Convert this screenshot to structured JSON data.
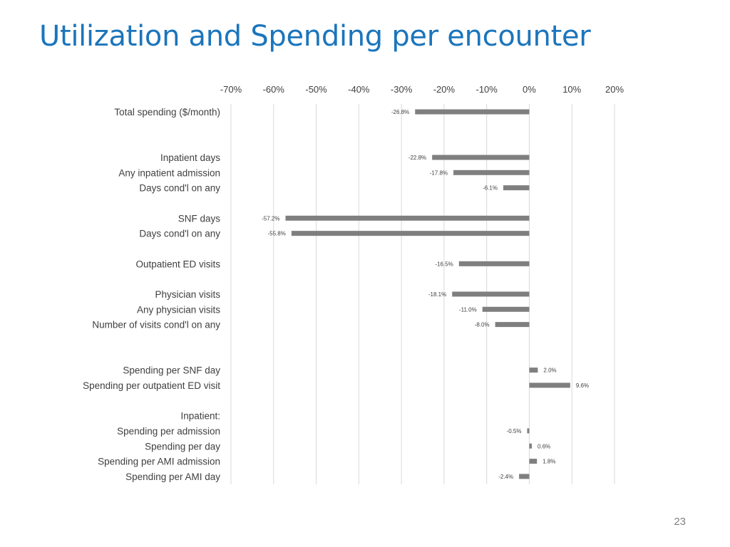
{
  "slide": {
    "title": "Utilization and Spending per encounter",
    "page_number": "23"
  },
  "colors": {
    "title": "#1B75BC",
    "bar": "#7F7F7F",
    "gridline": "#D9D9D9",
    "text": "#404040"
  },
  "chart_data": {
    "type": "bar",
    "orientation": "horizontal",
    "title": "",
    "xlabel": "",
    "ylabel": "",
    "xlim": [
      -70,
      20
    ],
    "x_ticks": [
      -70,
      -60,
      -50,
      -40,
      -30,
      -20,
      -10,
      0,
      10,
      20
    ],
    "x_tick_labels": [
      "-70%",
      "-60%",
      "-50%",
      "-40%",
      "-30%",
      "-20%",
      "-10%",
      "0%",
      "10%",
      "20%"
    ],
    "grid": true,
    "legend": "none",
    "categories": [
      "Total spending ($/month)",
      "",
      "",
      "Inpatient days",
      "Any inpatient admission",
      "Days cond'l on any",
      "",
      "SNF days",
      "Days cond'l on any",
      "",
      "Outpatient ED visits",
      "",
      "Physician visits",
      "Any physician visits",
      "Number of visits cond'l on any",
      "",
      "",
      "Spending per SNF day",
      "Spending per outpatient ED visit",
      "",
      "Inpatient:",
      "Spending per admission",
      "Spending per day",
      "Spending per AMI admission",
      "Spending per AMI day"
    ],
    "values": [
      -26.8,
      null,
      null,
      -22.8,
      -17.8,
      -6.1,
      null,
      -57.2,
      -55.8,
      null,
      -16.5,
      null,
      -18.1,
      -11.0,
      -8.0,
      null,
      null,
      2.0,
      9.6,
      null,
      null,
      -0.5,
      0.6,
      1.8,
      -2.4
    ],
    "value_labels": [
      "-26.8%",
      null,
      null,
      "-22.8%",
      "-17.8%",
      "-6.1%",
      null,
      "-57.2%",
      "-55.8%",
      null,
      "-16.5%",
      null,
      "-18.1%",
      "-11.0%",
      "-8.0%",
      null,
      null,
      "2.0%",
      "9.6%",
      null,
      null,
      "-0.5%",
      "0.6%",
      "1.8%",
      "-2.4%"
    ]
  }
}
